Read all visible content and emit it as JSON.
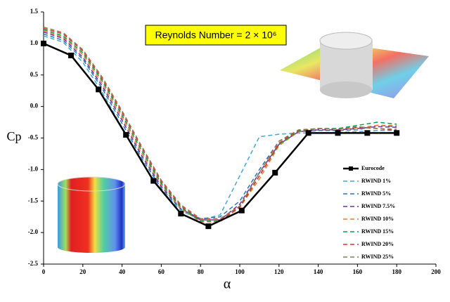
{
  "chart_data": {
    "type": "line",
    "annotation": "Reynolds Number = 2 × 10⁶",
    "xlabel": "α",
    "ylabel": "Cp",
    "xlim": [
      0,
      200
    ],
    "xticks": [
      0,
      20,
      40,
      60,
      80,
      100,
      120,
      140,
      160,
      180,
      200
    ],
    "ylim": [
      -2.5,
      1.5
    ],
    "yticks": [
      1.5,
      {
        "value": 1,
        "label": "1.0"
      },
      0.5,
      {
        "value": 0,
        "label": "0.0"
      },
      -0.5,
      {
        "value": -1,
        "label": "-1.0"
      },
      -1.5,
      {
        "value": -2,
        "label": "-2.0"
      },
      -2.5
    ],
    "legend": "lower right",
    "series": [
      {
        "name": "Eurocode",
        "color": "#000000",
        "markers": true,
        "x": [
          0,
          14,
          28,
          42,
          56,
          70,
          84,
          101,
          118,
          135,
          150,
          165,
          180
        ],
        "values": [
          1.0,
          0.81,
          0.27,
          -0.45,
          -1.18,
          -1.7,
          -1.9,
          -1.65,
          -1.05,
          -0.42,
          -0.42,
          -0.42,
          -0.42
        ]
      },
      {
        "name": "RWIND 1%",
        "color": "#3fa9d8",
        "dashed": true,
        "x": [
          0,
          10,
          20,
          30,
          40,
          50,
          60,
          70,
          80,
          90,
          100,
          110,
          120,
          130,
          140,
          150,
          160,
          170,
          180
        ],
        "values": [
          1.12,
          1.02,
          0.7,
          0.22,
          -0.33,
          -0.88,
          -1.33,
          -1.65,
          -1.8,
          -1.72,
          -1.1,
          -0.48,
          -0.44,
          -0.42,
          -0.42,
          -0.41,
          -0.4,
          -0.38,
          -0.38
        ]
      },
      {
        "name": "RWIND 5%",
        "color": "#2e75b6",
        "dashed": true,
        "x": [
          0,
          10,
          20,
          30,
          40,
          50,
          60,
          70,
          80,
          90,
          100,
          110,
          120,
          130,
          140,
          150,
          160,
          170,
          180
        ],
        "values": [
          1.15,
          1.05,
          0.75,
          0.28,
          -0.27,
          -0.82,
          -1.3,
          -1.63,
          -1.78,
          -1.75,
          -1.5,
          -1.0,
          -0.55,
          -0.4,
          -0.38,
          -0.38,
          -0.37,
          -0.3,
          -0.32
        ]
      },
      {
        "name": "RWIND 7.5%",
        "color": "#7030a0",
        "dashed": true,
        "x": [
          0,
          10,
          20,
          30,
          40,
          50,
          60,
          70,
          80,
          90,
          100,
          110,
          120,
          130,
          140,
          150,
          160,
          170,
          180
        ],
        "values": [
          1.18,
          1.08,
          0.78,
          0.32,
          -0.22,
          -0.78,
          -1.27,
          -1.62,
          -1.8,
          -1.8,
          -1.55,
          -1.05,
          -0.6,
          -0.4,
          -0.37,
          -0.37,
          -0.35,
          -0.32,
          -0.33
        ]
      },
      {
        "name": "RWIND 10%",
        "color": "#ed7d31",
        "dashed": true,
        "x": [
          0,
          10,
          20,
          30,
          40,
          50,
          60,
          70,
          80,
          90,
          100,
          110,
          120,
          130,
          140,
          150,
          160,
          170,
          180
        ],
        "values": [
          1.2,
          1.1,
          0.82,
          0.36,
          -0.18,
          -0.74,
          -1.24,
          -1.62,
          -1.83,
          -1.83,
          -1.6,
          -1.15,
          -0.62,
          -0.4,
          -0.35,
          -0.36,
          -0.34,
          -0.3,
          -0.3
        ]
      },
      {
        "name": "RWIND 15%",
        "color": "#00a050",
        "dashed": true,
        "x": [
          0,
          10,
          20,
          30,
          40,
          50,
          60,
          70,
          80,
          90,
          100,
          110,
          120,
          130,
          140,
          150,
          160,
          170,
          180
        ],
        "values": [
          1.22,
          1.12,
          0.85,
          0.4,
          -0.14,
          -0.7,
          -1.22,
          -1.6,
          -1.82,
          -1.82,
          -1.58,
          -1.1,
          -0.6,
          -0.39,
          -0.35,
          -0.35,
          -0.3,
          -0.25,
          -0.28
        ]
      },
      {
        "name": "RWIND 20%",
        "color": "#e03030",
        "dashed": true,
        "x": [
          0,
          10,
          20,
          30,
          40,
          50,
          60,
          70,
          80,
          90,
          100,
          110,
          120,
          130,
          140,
          150,
          160,
          170,
          180
        ],
        "values": [
          1.24,
          1.15,
          0.88,
          0.43,
          -0.1,
          -0.66,
          -1.19,
          -1.58,
          -1.8,
          -1.8,
          -1.6,
          -1.1,
          -0.58,
          -0.38,
          -0.35,
          -0.36,
          -0.33,
          -0.35,
          -0.38
        ]
      },
      {
        "name": "RWIND 25%",
        "color": "#8c7a50",
        "dashed": true,
        "x": [
          0,
          10,
          20,
          30,
          40,
          50,
          60,
          70,
          80,
          90,
          100,
          110,
          120,
          130,
          140,
          150,
          160,
          170,
          180
        ],
        "values": [
          1.26,
          1.17,
          0.9,
          0.46,
          -0.07,
          -0.63,
          -1.17,
          -1.56,
          -1.78,
          -1.78,
          -1.58,
          -1.05,
          -0.55,
          -0.37,
          -0.35,
          -0.36,
          -0.32,
          -0.35,
          -0.36
        ]
      }
    ]
  }
}
